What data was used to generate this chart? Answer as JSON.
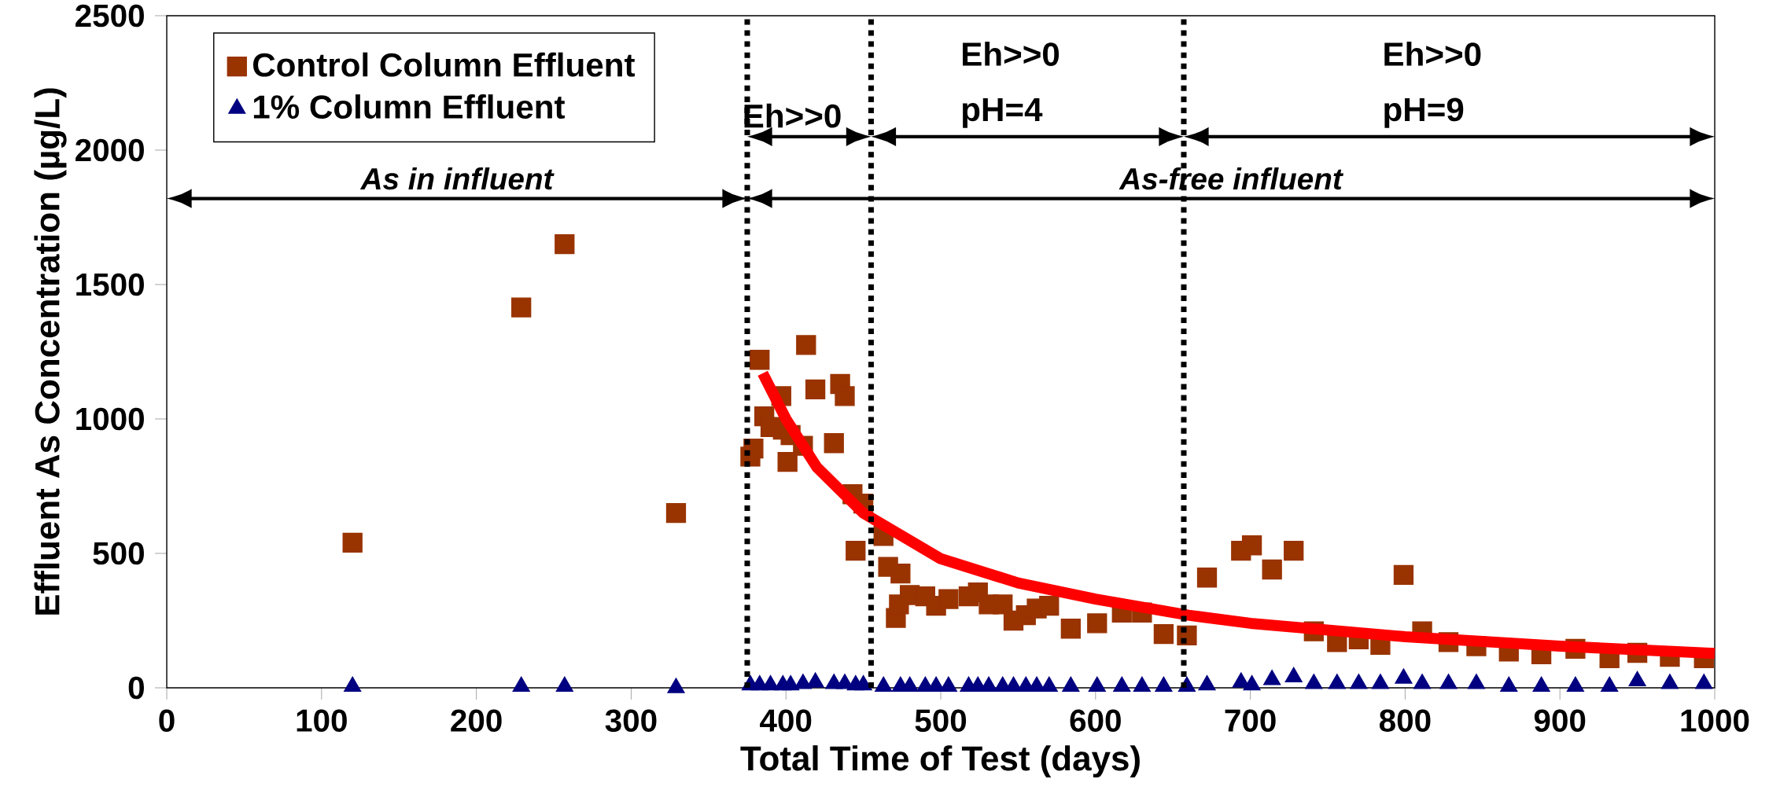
{
  "chart_data": {
    "type": "scatter",
    "xlabel": "Total Time of Test (days)",
    "ylabel": "Effluent As Concentration (µg/L)",
    "xlim": [
      0,
      1000
    ],
    "xticks": [
      0,
      100,
      200,
      300,
      400,
      500,
      600,
      700,
      800,
      900,
      1000
    ],
    "ylim": [
      0,
      2500
    ],
    "yticks": [
      0,
      500,
      1000,
      1500,
      2000,
      2500
    ],
    "legend": "top left",
    "series": [
      {
        "name": "Control Column Effluent",
        "color": "#993300",
        "marker": "square",
        "x": [
          120,
          229,
          257,
          329,
          377,
          379,
          383,
          386,
          390,
          397,
          398,
          401,
          403,
          411,
          413,
          419,
          431,
          435,
          438,
          443,
          445,
          450,
          463,
          466,
          471,
          473,
          474,
          480,
          490,
          497,
          505,
          518,
          524,
          531,
          540,
          547,
          555,
          562,
          570,
          584,
          601,
          617,
          630,
          644,
          659,
          672,
          694,
          701,
          714,
          728,
          741,
          756,
          770,
          784,
          799,
          811,
          828,
          846,
          867,
          888,
          910,
          932,
          950,
          971,
          993
        ],
        "values": [
          540,
          1415,
          1650,
          650,
          860,
          890,
          1220,
          1010,
          970,
          1085,
          960,
          840,
          940,
          900,
          1275,
          1110,
          910,
          1130,
          1085,
          720,
          510,
          685,
          565,
          450,
          260,
          310,
          425,
          345,
          340,
          305,
          330,
          340,
          355,
          310,
          310,
          250,
          270,
          295,
          305,
          220,
          240,
          280,
          280,
          200,
          195,
          410,
          510,
          530,
          440,
          510,
          210,
          170,
          180,
          160,
          420,
          210,
          170,
          155,
          135,
          125,
          145,
          110,
          130,
          115,
          110
        ]
      },
      {
        "name": "1% Column Effluent",
        "color": "#000080",
        "marker": "triangle",
        "x": [
          120,
          229,
          257,
          329,
          377,
          383,
          390,
          398,
          403,
          411,
          419,
          431,
          438,
          445,
          450,
          463,
          474,
          480,
          490,
          497,
          505,
          518,
          524,
          531,
          540,
          547,
          555,
          562,
          570,
          584,
          601,
          617,
          630,
          644,
          659,
          672,
          694,
          701,
          714,
          728,
          741,
          756,
          770,
          784,
          799,
          811,
          828,
          846,
          867,
          888,
          910,
          932,
          950,
          971,
          993
        ],
        "values": [
          5,
          5,
          5,
          0,
          10,
          10,
          10,
          10,
          10,
          15,
          20,
          15,
          15,
          10,
          10,
          5,
          5,
          5,
          5,
          5,
          5,
          5,
          5,
          5,
          5,
          5,
          5,
          5,
          5,
          5,
          5,
          5,
          5,
          5,
          5,
          10,
          20,
          10,
          30,
          40,
          15,
          15,
          15,
          15,
          35,
          15,
          15,
          15,
          5,
          5,
          5,
          5,
          25,
          15,
          15
        ]
      },
      {
        "type": "line",
        "color": "#ff0000",
        "marker": "none",
        "x": [
          385,
          400,
          420,
          450,
          500,
          550,
          600,
          660,
          700,
          800,
          900,
          1000
        ],
        "values": [
          1170,
          1000,
          820,
          650,
          480,
          390,
          330,
          270,
          240,
          190,
          155,
          128
        ]
      }
    ],
    "ref_lines": [
      {
        "axis": "x",
        "value": 375,
        "line_style": "dotted"
      },
      {
        "axis": "x",
        "value": 455,
        "line_style": "dotted"
      },
      {
        "axis": "x",
        "value": 657,
        "line_style": "dotted"
      }
    ],
    "annotations": [
      "As in influent",
      "As-free influent",
      "Eh>>0",
      "Eh>>0 pH=4",
      "Eh>>0 pH=9"
    ]
  }
}
